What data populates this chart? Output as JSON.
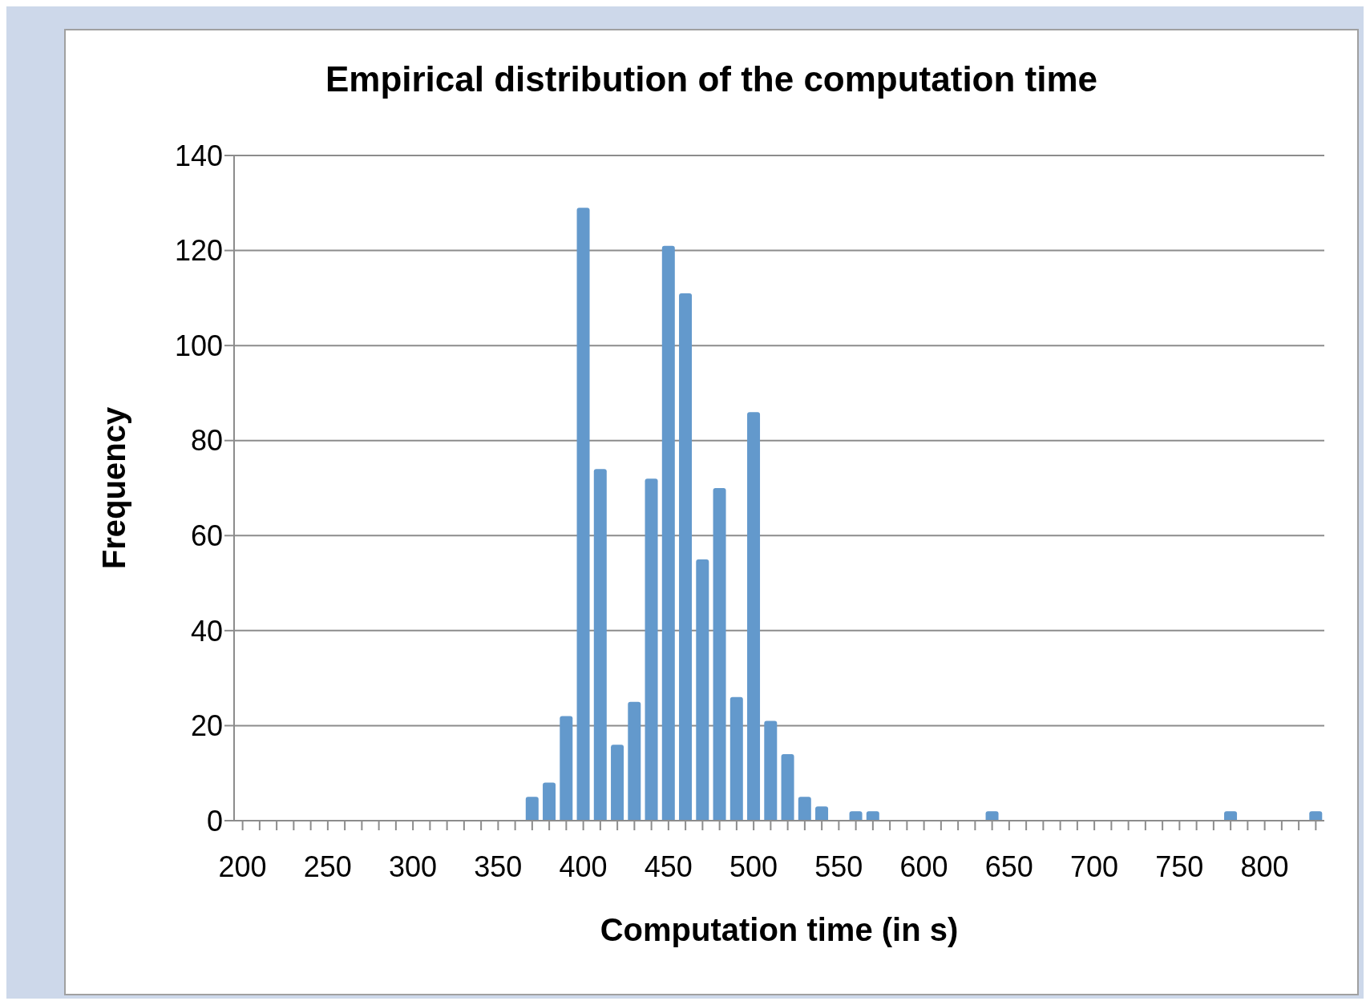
{
  "chart_data": {
    "type": "bar",
    "title": "Empirical distribution of the computation time",
    "xlabel": "Computation time (in s)",
    "ylabel": "Frequency",
    "categories": [
      "200",
      null,
      null,
      null,
      null,
      "250",
      null,
      null,
      null,
      null,
      "300",
      null,
      null,
      null,
      null,
      "350",
      null,
      null,
      null,
      null,
      "400",
      null,
      null,
      null,
      null,
      "450",
      null,
      null,
      null,
      null,
      "500",
      null,
      null,
      null,
      null,
      "550",
      null,
      null,
      null,
      null,
      "600",
      null,
      null,
      null,
      null,
      "650",
      null,
      null,
      null,
      null,
      "700",
      null,
      null,
      null,
      null,
      "750",
      null,
      null,
      null,
      null,
      "800",
      null,
      null,
      null
    ],
    "values": [
      0,
      0,
      0,
      0,
      0,
      0,
      0,
      0,
      0,
      0,
      0,
      0,
      0,
      0,
      0,
      0,
      0,
      5,
      8,
      22,
      129,
      74,
      16,
      25,
      72,
      121,
      111,
      55,
      70,
      26,
      86,
      21,
      14,
      5,
      3,
      0,
      2,
      2,
      0,
      0,
      0,
      0,
      0,
      0,
      2,
      0,
      0,
      0,
      0,
      0,
      0,
      0,
      0,
      0,
      0,
      0,
      0,
      0,
      2,
      0,
      0,
      0,
      0,
      2
    ],
    "color": "#6399cc",
    "ylim": [
      0,
      140
    ],
    "yticks": [
      0,
      20,
      40,
      60,
      80,
      100,
      120,
      140
    ],
    "grid": "y"
  }
}
